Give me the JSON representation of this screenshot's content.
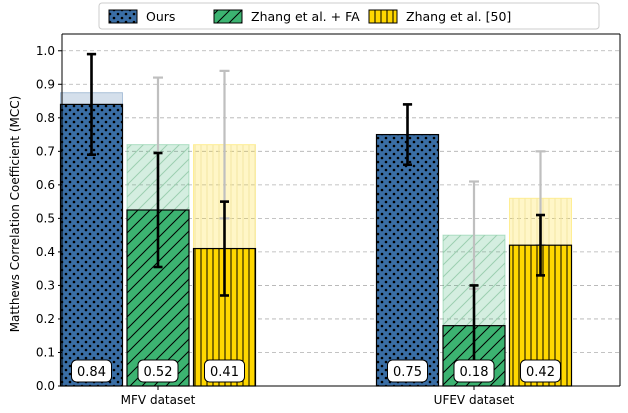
{
  "chart_data": {
    "type": "bar",
    "categories": [
      "MFV dataset",
      "UFEV dataset"
    ],
    "ylabel": "Matthews Correlation Coefficient (MCC)",
    "xlabel": "",
    "ylim": [
      0.0,
      1.05
    ],
    "yticks": [
      "0.0",
      "0.1",
      "0.2",
      "0.3",
      "0.4",
      "0.5",
      "0.6",
      "0.7",
      "0.8",
      "0.9",
      "1.0"
    ],
    "grid": "horizontal dashed",
    "legend_position": "top-center",
    "series": [
      {
        "name": "Ours",
        "color": "#3a6ea5",
        "pattern": "dots",
        "values": [
          0.84,
          0.75
        ],
        "labels": [
          "0.84",
          "0.75"
        ],
        "error_low": [
          0.69,
          0.66
        ],
        "error_high": [
          0.99,
          0.84
        ],
        "shadow_values": [
          0.875,
          0.75
        ],
        "shadow_error_low": [
          0.69,
          0.66
        ],
        "shadow_error_high": [
          0.99,
          0.84
        ]
      },
      {
        "name": "Zhang et al. + FA",
        "color": "#3cb371",
        "pattern": "diagonal-hatch",
        "values": [
          0.525,
          0.18
        ],
        "labels": [
          "0.52",
          "0.18"
        ],
        "error_low": [
          0.355,
          0.06
        ],
        "error_high": [
          0.695,
          0.3
        ],
        "shadow_values": [
          0.72,
          0.45
        ],
        "shadow_error_low": [
          0.52,
          0.29
        ],
        "shadow_error_high": [
          0.92,
          0.61
        ]
      },
      {
        "name": "Zhang et al. [50]",
        "color": "#ffd700",
        "pattern": "vertical-hatch",
        "values": [
          0.41,
          0.42
        ],
        "labels": [
          "0.41",
          "0.42"
        ],
        "error_low": [
          0.27,
          0.33
        ],
        "error_high": [
          0.55,
          0.51
        ],
        "shadow_values": [
          0.72,
          0.56
        ],
        "shadow_error_low": [
          0.5,
          0.42
        ],
        "shadow_error_high": [
          0.94,
          0.7
        ]
      }
    ]
  }
}
